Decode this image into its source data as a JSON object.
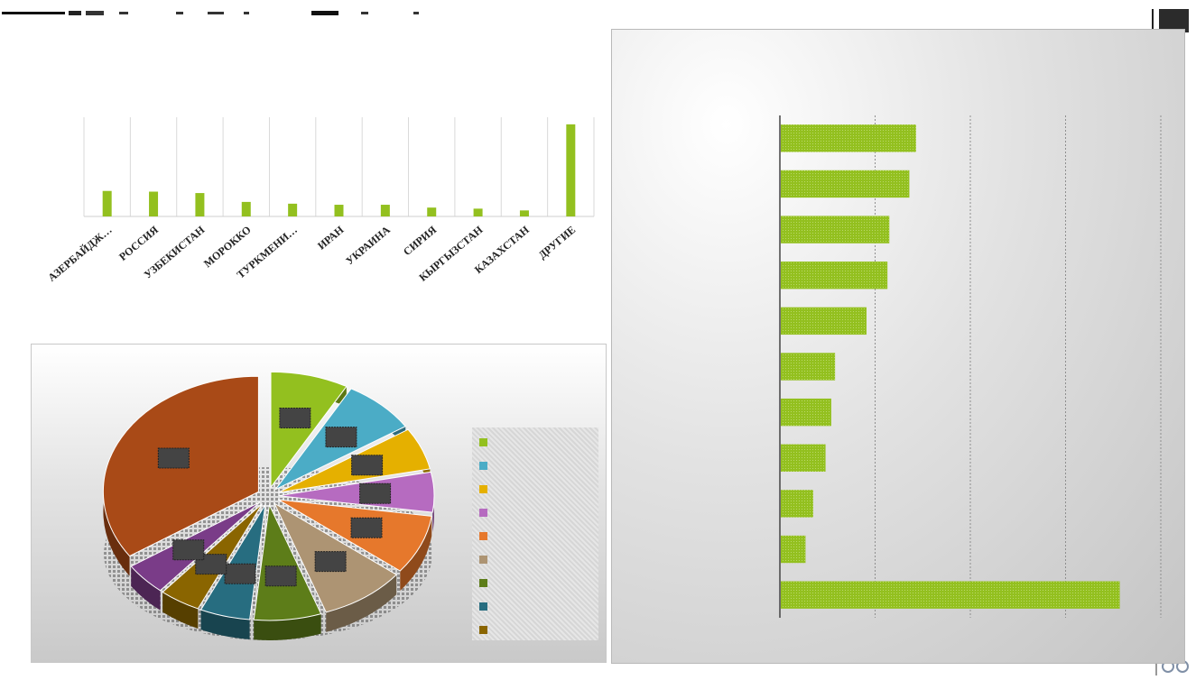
{
  "colors": {
    "bar_green": "#93c01f",
    "grid": "#d9d9d9"
  },
  "chart_data": [
    {
      "type": "bar",
      "categories": [
        "АЗЕРБАЙДЖ…",
        "РОССИЯ",
        "УЗБЕКИСТАН",
        "МОРОККО",
        "ТУРКМЕНИ…",
        "ИРАН",
        "УКРАИНА",
        "СИРИЯ",
        "КЫРГЫЗСТАН",
        "КАЗАХСТАН",
        "ДРУГИЕ"
      ],
      "values": [
        7.2,
        7.0,
        6.6,
        4.1,
        3.6,
        3.3,
        3.3,
        2.5,
        2.2,
        1.7,
        26.0
      ],
      "ylim": [
        0,
        28
      ],
      "grid": true,
      "color": "#93c01f"
    },
    {
      "type": "pie",
      "values": [
        8.1,
        7.7,
        5.9,
        5.6,
        8.3,
        9.0,
        7.0,
        5.2,
        4.3,
        4.5,
        34.4
      ],
      "colors": [
        "#93c01f",
        "#4bacc6",
        "#e5b000",
        "#b66bc0",
        "#e6782c",
        "#ad9473",
        "#5d7d19",
        "#276d80",
        "#8a6500",
        "#7a3c88",
        "#a94a17"
      ],
      "legend_position": "right",
      "legend_swatches": [
        "#93c01f",
        "#4bacc6",
        "#e5b000",
        "#b66bc0",
        "#e6782c",
        "#ad9473",
        "#5d7d19",
        "#276d80",
        "#8a6500"
      ]
    },
    {
      "type": "bar",
      "orientation": "horizontal",
      "values": [
        142,
        135,
        114,
        112,
        90,
        57,
        53,
        47,
        34,
        26,
        356
      ],
      "xlim": [
        0,
        400
      ],
      "grid": true,
      "color": "#93c01f"
    }
  ]
}
